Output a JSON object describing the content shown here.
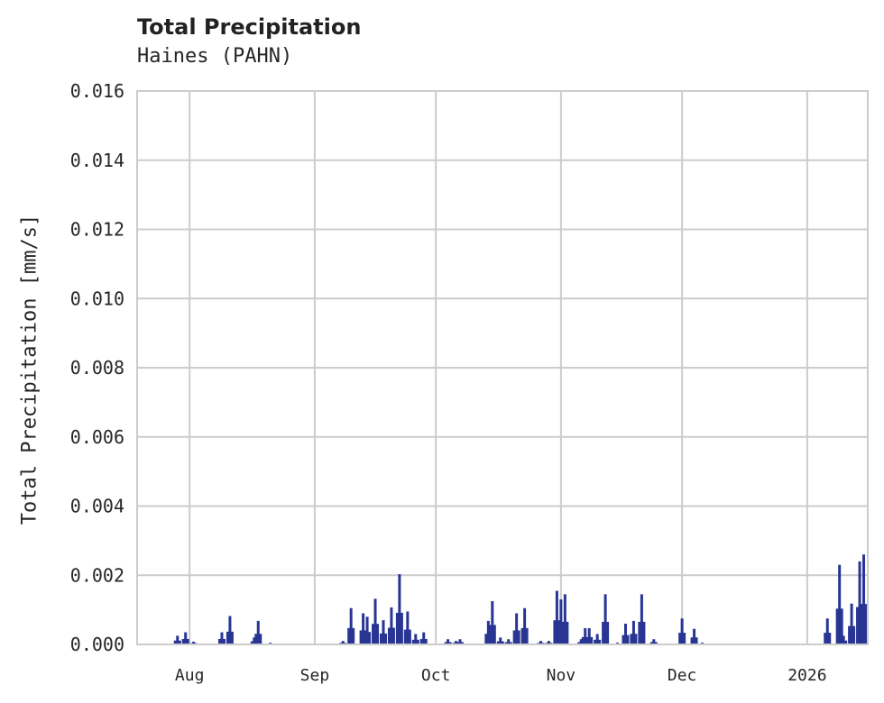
{
  "chart_data": {
    "type": "bar",
    "title": "Total Precipitation",
    "subtitle": "Haines (PAHN)",
    "xlabel": "",
    "ylabel": "Total Precipitation [mm/s]",
    "ylim": [
      0,
      0.016
    ],
    "yticks": [
      "0.000",
      "0.002",
      "0.004",
      "0.006",
      "0.008",
      "0.010",
      "0.012",
      "0.014",
      "0.016"
    ],
    "xticks": [
      "Aug",
      "Sep",
      "Oct",
      "Nov",
      "Dec",
      "2026"
    ],
    "grid": true,
    "legend": null,
    "color": "#283593",
    "x_range": [
      "2025-07-19",
      "2026-01-16"
    ],
    "series": [
      {
        "name": "Total Precipitation",
        "points": [
          {
            "date": "2025-07-29",
            "value": 0.00025
          },
          {
            "date": "2025-07-31",
            "value": 0.00035
          },
          {
            "date": "2025-08-02",
            "value": 8e-05
          },
          {
            "date": "2025-08-09",
            "value": 0.00035
          },
          {
            "date": "2025-08-11",
            "value": 0.00082
          },
          {
            "date": "2025-08-17",
            "value": 0.0002
          },
          {
            "date": "2025-08-18",
            "value": 0.00068
          },
          {
            "date": "2025-08-21",
            "value": 5e-05
          },
          {
            "date": "2025-09-08",
            "value": 0.0001
          },
          {
            "date": "2025-09-10",
            "value": 0.00105
          },
          {
            "date": "2025-09-13",
            "value": 0.0009
          },
          {
            "date": "2025-09-14",
            "value": 0.0008
          },
          {
            "date": "2025-09-16",
            "value": 0.00132
          },
          {
            "date": "2025-09-18",
            "value": 0.0007
          },
          {
            "date": "2025-09-20",
            "value": 0.00107
          },
          {
            "date": "2025-09-22",
            "value": 0.00203
          },
          {
            "date": "2025-09-24",
            "value": 0.00095
          },
          {
            "date": "2025-09-26",
            "value": 0.0003
          },
          {
            "date": "2025-09-28",
            "value": 0.00035
          },
          {
            "date": "2025-10-04",
            "value": 0.00015
          },
          {
            "date": "2025-10-06",
            "value": 0.0001
          },
          {
            "date": "2025-10-07",
            "value": 0.00015
          },
          {
            "date": "2025-10-14",
            "value": 0.00068
          },
          {
            "date": "2025-10-15",
            "value": 0.00125
          },
          {
            "date": "2025-10-17",
            "value": 0.0002
          },
          {
            "date": "2025-10-19",
            "value": 0.00015
          },
          {
            "date": "2025-10-21",
            "value": 0.0009
          },
          {
            "date": "2025-10-23",
            "value": 0.00105
          },
          {
            "date": "2025-10-27",
            "value": 0.0001
          },
          {
            "date": "2025-10-29",
            "value": 0.0001
          },
          {
            "date": "2025-10-31",
            "value": 0.00155
          },
          {
            "date": "2025-11-01",
            "value": 0.0013
          },
          {
            "date": "2025-11-02",
            "value": 0.00145
          },
          {
            "date": "2025-11-06",
            "value": 0.00015
          },
          {
            "date": "2025-11-07",
            "value": 0.00047
          },
          {
            "date": "2025-11-08",
            "value": 0.00047
          },
          {
            "date": "2025-11-10",
            "value": 0.0003
          },
          {
            "date": "2025-11-12",
            "value": 0.00145
          },
          {
            "date": "2025-11-15",
            "value": 5e-05
          },
          {
            "date": "2025-11-17",
            "value": 0.0006
          },
          {
            "date": "2025-11-19",
            "value": 0.00068
          },
          {
            "date": "2025-11-21",
            "value": 0.00145
          },
          {
            "date": "2025-11-24",
            "value": 0.00015
          },
          {
            "date": "2025-12-01",
            "value": 0.00075
          },
          {
            "date": "2025-12-04",
            "value": 0.00045
          },
          {
            "date": "2025-12-06",
            "value": 5e-05
          },
          {
            "date": "2026-01-06",
            "value": 0.00075
          },
          {
            "date": "2026-01-09",
            "value": 0.0023
          },
          {
            "date": "2026-01-10",
            "value": 0.00025
          },
          {
            "date": "2026-01-12",
            "value": 0.00118
          },
          {
            "date": "2026-01-14",
            "value": 0.0024
          },
          {
            "date": "2026-01-15",
            "value": 0.0026
          }
        ]
      }
    ]
  }
}
